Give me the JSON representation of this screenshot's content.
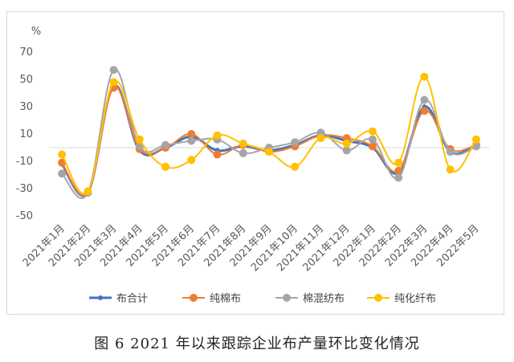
{
  "caption": "图 6   2021 年以来跟踪企业布产量环比变化情况",
  "chart_data": {
    "type": "line",
    "title": "",
    "unit_label": "%",
    "xlabel": "",
    "ylabel": "",
    "ylim": [
      -50,
      70
    ],
    "yticks": [
      70,
      50,
      30,
      10,
      -10,
      -30,
      -50
    ],
    "grid": "none",
    "legend": "bottom",
    "categories": [
      "2021年1月",
      "2021年2月",
      "2021年3月",
      "2021年4月",
      "2021年5月",
      "2021年6月",
      "2021年7月",
      "2021年8月",
      "2021年9月",
      "2021年10月",
      "2021年11月",
      "2021年12月",
      "2022年1月",
      "2022年2月",
      "2022年3月",
      "2022年4月",
      "2022年5月"
    ],
    "series": [
      {
        "name": "布合计",
        "color": "#4472c4",
        "values": [
          -12,
          -33,
          45,
          -2,
          0,
          8,
          -2,
          1,
          -2,
          2,
          9,
          5,
          0,
          -18,
          30,
          -3,
          2
        ]
      },
      {
        "name": "纯棉布",
        "color": "#ed7d31",
        "values": [
          -11,
          -33,
          44,
          -1,
          0,
          10,
          -5,
          2,
          -3,
          1,
          9,
          7,
          1,
          -17,
          27,
          -1,
          2
        ]
      },
      {
        "name": "棉混纺布",
        "color": "#a5a5a5",
        "values": [
          -19,
          -33,
          57,
          1,
          2,
          5,
          6,
          -4,
          0,
          4,
          11,
          -2,
          6,
          -22,
          35,
          -3,
          1
        ]
      },
      {
        "name": "纯化纤布",
        "color": "#ffc000",
        "values": [
          -5,
          -32,
          48,
          6,
          -14,
          -9,
          9,
          3,
          -3,
          -14,
          7,
          3,
          12,
          -11,
          52,
          -16,
          6
        ]
      }
    ]
  }
}
